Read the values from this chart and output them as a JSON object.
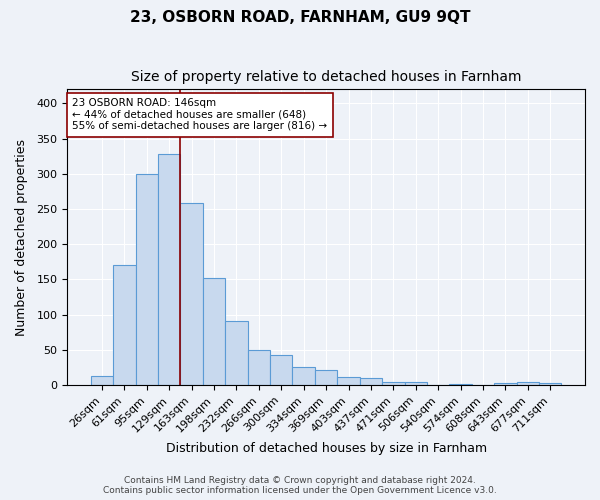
{
  "title": "23, OSBORN ROAD, FARNHAM, GU9 9QT",
  "subtitle": "Size of property relative to detached houses in Farnham",
  "xlabel": "Distribution of detached houses by size in Farnham",
  "ylabel": "Number of detached properties",
  "bin_labels": [
    "26sqm",
    "61sqm",
    "95sqm",
    "129sqm",
    "163sqm",
    "198sqm",
    "232sqm",
    "266sqm",
    "300sqm",
    "334sqm",
    "369sqm",
    "403sqm",
    "437sqm",
    "471sqm",
    "506sqm",
    "540sqm",
    "574sqm",
    "608sqm",
    "643sqm",
    "677sqm",
    "711sqm"
  ],
  "bar_values": [
    13,
    170,
    300,
    328,
    258,
    152,
    91,
    50,
    42,
    26,
    22,
    11,
    10,
    4,
    5,
    0,
    2,
    0,
    3,
    4,
    3
  ],
  "bar_color": "#c8d9ee",
  "bar_edge_color": "#5b9bd5",
  "vline_color": "#8b0000",
  "vline_pos": 3.5,
  "annotation_text": "23 OSBORN ROAD: 146sqm\n← 44% of detached houses are smaller (648)\n55% of semi-detached houses are larger (816) →",
  "annotation_box_color": "white",
  "annotation_box_edge_color": "#8b0000",
  "ylim": [
    0,
    420
  ],
  "yticks": [
    0,
    50,
    100,
    150,
    200,
    250,
    300,
    350,
    400
  ],
  "footer_line1": "Contains HM Land Registry data © Crown copyright and database right 2024.",
  "footer_line2": "Contains public sector information licensed under the Open Government Licence v3.0.",
  "background_color": "#eef2f8",
  "grid_color": "white",
  "title_fontsize": 11,
  "subtitle_fontsize": 10,
  "axis_label_fontsize": 9,
  "tick_fontsize": 8,
  "footer_fontsize": 6.5
}
